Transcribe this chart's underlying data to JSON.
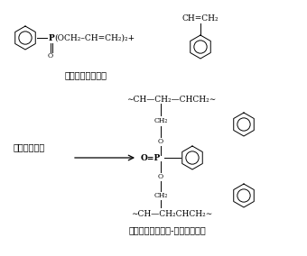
{
  "bg_color": "#ffffff",
  "text_color": "#000000",
  "fig_width": 3.4,
  "fig_height": 2.84,
  "dpi": 100,
  "top_label": "苯基二烯丙膚酸酯",
  "bottom_label": "苯基二烯丙膚酸酯-苯乙烯共聚物",
  "arrow_label": "过氧化苯甲酰",
  "font_size_label": 7,
  "font_size_formula": 6.5,
  "font_size_small": 5.5
}
